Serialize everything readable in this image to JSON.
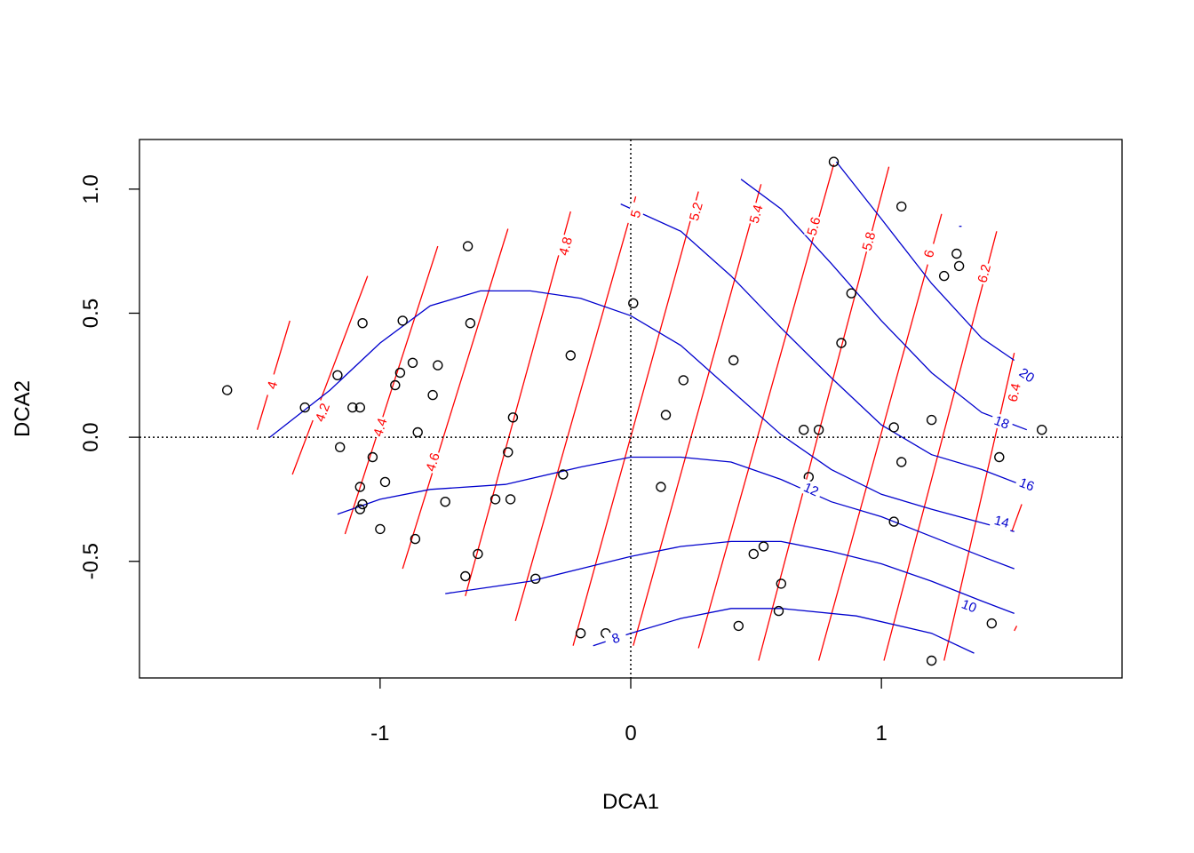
{
  "chart_data": {
    "type": "scatter",
    "title": "",
    "xlabel": "DCA1",
    "ylabel": "DCA2",
    "xlim": [
      -1.96,
      1.96
    ],
    "ylim": [
      -0.97,
      1.2
    ],
    "x_ticks": [
      -1,
      0,
      1
    ],
    "x_tick_labels": [
      "-1",
      "0",
      "1"
    ],
    "y_ticks": [
      -0.5,
      0.0,
      0.5,
      1.0
    ],
    "y_tick_labels": [
      "-0.5",
      "0.0",
      "0.5",
      "1.0"
    ],
    "grid": false,
    "reference_lines": {
      "x": 0,
      "y": 0,
      "style": "dotted"
    },
    "points": [
      [
        -1.61,
        0.19
      ],
      [
        -1.3,
        0.12
      ],
      [
        -1.17,
        0.25
      ],
      [
        -1.16,
        -0.04
      ],
      [
        -1.11,
        0.12
      ],
      [
        -1.08,
        0.12
      ],
      [
        -1.07,
        0.46
      ],
      [
        -1.08,
        -0.2
      ],
      [
        -1.07,
        -0.27
      ],
      [
        -1.08,
        -0.29
      ],
      [
        -1.03,
        -0.08
      ],
      [
        -1.0,
        -0.37
      ],
      [
        -0.98,
        -0.18
      ],
      [
        -0.94,
        0.21
      ],
      [
        -0.92,
        0.26
      ],
      [
        -0.91,
        0.47
      ],
      [
        -0.87,
        0.3
      ],
      [
        -0.85,
        0.02
      ],
      [
        -0.86,
        -0.41
      ],
      [
        -0.79,
        0.17
      ],
      [
        -0.77,
        0.29
      ],
      [
        -0.74,
        -0.26
      ],
      [
        -0.65,
        0.77
      ],
      [
        -0.64,
        0.46
      ],
      [
        -0.66,
        -0.56
      ],
      [
        -0.61,
        -0.47
      ],
      [
        -0.54,
        -0.25
      ],
      [
        -0.49,
        -0.06
      ],
      [
        -0.48,
        -0.25
      ],
      [
        -0.47,
        0.08
      ],
      [
        -0.38,
        -0.57
      ],
      [
        -0.27,
        -0.15
      ],
      [
        -0.24,
        0.33
      ],
      [
        -0.2,
        -0.79
      ],
      [
        -0.1,
        -0.79
      ],
      [
        0.01,
        0.54
      ],
      [
        0.12,
        -0.2
      ],
      [
        0.14,
        0.09
      ],
      [
        0.21,
        0.23
      ],
      [
        0.41,
        0.31
      ],
      [
        0.43,
        -0.76
      ],
      [
        0.49,
        -0.47
      ],
      [
        0.53,
        -0.44
      ],
      [
        0.59,
        -0.7
      ],
      [
        0.6,
        -0.59
      ],
      [
        0.69,
        0.03
      ],
      [
        0.71,
        -0.16
      ],
      [
        0.75,
        0.03
      ],
      [
        0.81,
        1.11
      ],
      [
        0.84,
        0.38
      ],
      [
        0.88,
        0.58
      ],
      [
        1.05,
        0.04
      ],
      [
        1.05,
        -0.34
      ],
      [
        1.08,
        0.93
      ],
      [
        1.08,
        -0.1
      ],
      [
        1.2,
        0.07
      ],
      [
        1.2,
        -0.9
      ],
      [
        1.25,
        0.65
      ],
      [
        1.3,
        0.74
      ],
      [
        1.31,
        0.69
      ],
      [
        1.44,
        -0.75
      ],
      [
        1.47,
        -0.08
      ],
      [
        1.64,
        0.03
      ]
    ],
    "contours": [
      {
        "variable": "red",
        "color": "#ff0000",
        "lines": [
          {
            "label": "4",
            "lx": -1.43,
            "ly": 0.21,
            "pts": [
              [
                -1.49,
                0.03
              ],
              [
                -1.36,
                0.47
              ]
            ]
          },
          {
            "label": "4.2",
            "lx": -1.23,
            "ly": 0.1,
            "pts": [
              [
                -1.35,
                -0.15
              ],
              [
                -1.05,
                0.65
              ]
            ]
          },
          {
            "label": "4.4",
            "lx": -1.0,
            "ly": 0.04,
            "pts": [
              [
                -1.14,
                -0.39
              ],
              [
                -0.77,
                0.77
              ]
            ]
          },
          {
            "label": "4.6",
            "lx": -0.79,
            "ly": -0.1,
            "pts": [
              [
                -0.91,
                -0.53
              ],
              [
                -0.49,
                0.84
              ]
            ]
          },
          {
            "label": "4.8",
            "lx": -0.26,
            "ly": 0.77,
            "pts": [
              [
                -0.66,
                -0.64
              ],
              [
                -0.24,
                0.91
              ]
            ]
          },
          {
            "label": "5",
            "lx": 0.02,
            "ly": 0.9,
            "pts": [
              [
                -0.46,
                -0.74
              ],
              [
                0.02,
                0.97
              ]
            ]
          },
          {
            "label": "5.2",
            "lx": 0.26,
            "ly": 0.91,
            "pts": [
              [
                -0.23,
                -0.84
              ],
              [
                0.27,
                0.99
              ]
            ]
          },
          {
            "label": "5.4",
            "lx": 0.5,
            "ly": 0.9,
            "pts": [
              [
                0.01,
                -0.84
              ],
              [
                0.52,
                1.02
              ]
            ]
          },
          {
            "label": "5.6",
            "lx": 0.73,
            "ly": 0.85,
            "pts": [
              [
                0.27,
                -0.85
              ],
              [
                0.81,
                1.1
              ]
            ]
          },
          {
            "label": "5.8",
            "lx": 0.95,
            "ly": 0.79,
            "pts": [
              [
                0.51,
                -0.9
              ],
              [
                1.03,
                1.09
              ]
            ]
          },
          {
            "label": "6",
            "lx": 1.19,
            "ly": 0.74,
            "pts": [
              [
                0.75,
                -0.9
              ],
              [
                1.24,
                0.9
              ]
            ]
          },
          {
            "label": "6.2",
            "lx": 1.41,
            "ly": 0.66,
            "pts": [
              [
                1.01,
                -0.9
              ],
              [
                1.46,
                0.83
              ]
            ]
          },
          {
            "label": "6.4",
            "lx": 1.53,
            "ly": 0.18,
            "pts": [
              [
                1.25,
                -0.9
              ],
              [
                1.53,
                0.34
              ]
            ]
          },
          {
            "label": "",
            "lx": null,
            "ly": null,
            "pts": [
              [
                1.52,
                -0.38
              ],
              [
                1.56,
                -0.27
              ]
            ]
          },
          {
            "label": "",
            "lx": null,
            "ly": null,
            "pts": [
              [
                1.53,
                -0.78
              ],
              [
                1.54,
                -0.76
              ]
            ]
          }
        ]
      },
      {
        "variable": "blue",
        "color": "#0000cd",
        "lines": [
          {
            "label": "8",
            "lx": -0.06,
            "ly": -0.81,
            "pts": [
              [
                -0.15,
                -0.84
              ],
              [
                0.0,
                -0.79
              ],
              [
                0.2,
                -0.73
              ],
              [
                0.4,
                -0.69
              ],
              [
                0.6,
                -0.69
              ],
              [
                0.9,
                -0.72
              ],
              [
                1.2,
                -0.79
              ],
              [
                1.37,
                -0.87
              ]
            ]
          },
          {
            "label": "10",
            "lx": 1.35,
            "ly": -0.68,
            "pts": [
              [
                -0.74,
                -0.63
              ],
              [
                -0.4,
                -0.58
              ],
              [
                -0.2,
                -0.53
              ],
              [
                0.0,
                -0.48
              ],
              [
                0.2,
                -0.44
              ],
              [
                0.4,
                -0.42
              ],
              [
                0.6,
                -0.42
              ],
              [
                0.8,
                -0.46
              ],
              [
                1.0,
                -0.51
              ],
              [
                1.2,
                -0.58
              ],
              [
                1.4,
                -0.66
              ],
              [
                1.53,
                -0.71
              ]
            ]
          },
          {
            "label": "12",
            "lx": 0.72,
            "ly": -0.21,
            "pts": [
              [
                -1.17,
                -0.31
              ],
              [
                -1.0,
                -0.25
              ],
              [
                -0.8,
                -0.21
              ],
              [
                -0.5,
                -0.19
              ],
              [
                -0.2,
                -0.12
              ],
              [
                0.0,
                -0.08
              ],
              [
                0.2,
                -0.08
              ],
              [
                0.4,
                -0.1
              ],
              [
                0.6,
                -0.17
              ],
              [
                0.8,
                -0.26
              ],
              [
                1.0,
                -0.32
              ],
              [
                1.2,
                -0.4
              ],
              [
                1.4,
                -0.48
              ],
              [
                1.53,
                -0.53
              ]
            ]
          },
          {
            "label": "14",
            "lx": 1.48,
            "ly": -0.34,
            "pts": [
              [
                -1.44,
                0.0
              ],
              [
                -1.2,
                0.19
              ],
              [
                -1.0,
                0.38
              ],
              [
                -0.8,
                0.53
              ],
              [
                -0.6,
                0.59
              ],
              [
                -0.4,
                0.59
              ],
              [
                -0.2,
                0.56
              ],
              [
                0.0,
                0.49
              ],
              [
                0.2,
                0.37
              ],
              [
                0.4,
                0.19
              ],
              [
                0.6,
                0.01
              ],
              [
                0.8,
                -0.13
              ],
              [
                1.0,
                -0.23
              ],
              [
                1.2,
                -0.29
              ],
              [
                1.53,
                -0.38
              ]
            ]
          },
          {
            "label": "16",
            "lx": 1.58,
            "ly": -0.19,
            "pts": [
              [
                -0.04,
                0.94
              ],
              [
                0.2,
                0.83
              ],
              [
                0.4,
                0.65
              ],
              [
                0.6,
                0.44
              ],
              [
                0.8,
                0.24
              ],
              [
                1.0,
                0.05
              ],
              [
                1.2,
                -0.07
              ],
              [
                1.4,
                -0.13
              ],
              [
                1.58,
                -0.2
              ]
            ]
          },
          {
            "label": "18",
            "lx": 1.48,
            "ly": 0.06,
            "pts": [
              [
                0.44,
                1.04
              ],
              [
                0.6,
                0.92
              ],
              [
                0.8,
                0.7
              ],
              [
                1.0,
                0.47
              ],
              [
                1.2,
                0.26
              ],
              [
                1.4,
                0.1
              ],
              [
                1.58,
                0.03
              ]
            ]
          },
          {
            "label": "20",
            "lx": 1.58,
            "ly": 0.25,
            "pts": [
              [
                0.82,
                1.11
              ],
              [
                1.0,
                0.88
              ],
              [
                1.2,
                0.62
              ],
              [
                1.4,
                0.4
              ],
              [
                1.53,
                0.31
              ]
            ]
          },
          {
            "label": "",
            "lx": null,
            "ly": null,
            "pts": [
              [
                1.31,
                0.85
              ],
              [
                1.32,
                0.85
              ]
            ]
          }
        ]
      }
    ]
  }
}
